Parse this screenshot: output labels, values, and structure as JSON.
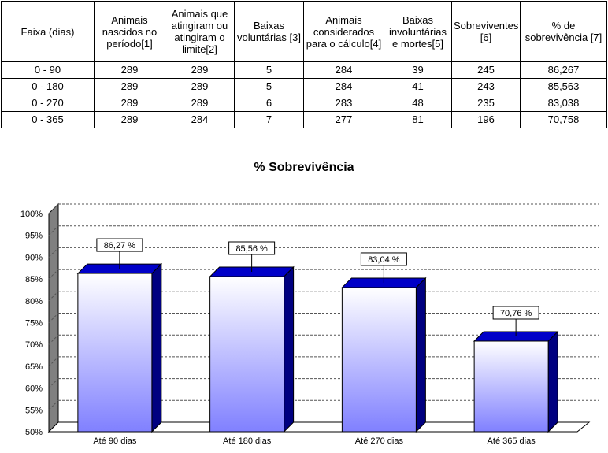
{
  "table": {
    "headers": [
      "Faixa (dias)",
      "Animais nascidos no período[1]",
      "Animais que atingiram ou atingiram o limite[2]",
      "Baixas voluntárias [3]",
      "Animais considerados para o cálculo[4]",
      "Baixas involuntárias e mortes[5]",
      "Sobreviventes [6]",
      "% de sobrevivência [7]"
    ],
    "rows": [
      [
        "0 - 90",
        "289",
        "289",
        "5",
        "284",
        "39",
        "245",
        "86,267"
      ],
      [
        "0 - 180",
        "289",
        "289",
        "5",
        "284",
        "41",
        "243",
        "85,563"
      ],
      [
        "0 - 270",
        "289",
        "289",
        "6",
        "283",
        "48",
        "235",
        "83,038"
      ],
      [
        "0 - 365",
        "289",
        "284",
        "7",
        "277",
        "81",
        "196",
        "70,758"
      ]
    ]
  },
  "chart_data": {
    "type": "bar",
    "title": "% Sobrevivência",
    "categories": [
      "Até 90 dias",
      "Até 180 dias",
      "Até 270 dias",
      "Até 365 dias"
    ],
    "values": [
      86.27,
      85.56,
      83.04,
      70.76
    ],
    "data_labels": [
      "86,27 %",
      "85,56 %",
      "83,04 %",
      "70,76 %"
    ],
    "ylim": [
      50,
      100
    ],
    "yticks": [
      "50%",
      "55%",
      "60%",
      "65%",
      "70%",
      "75%",
      "80%",
      "85%",
      "90%",
      "95%",
      "100%"
    ],
    "grid": true,
    "style": "3d-column",
    "colors": {
      "bar_gradient_top": "#ffffff",
      "bar_gradient_bottom": "#8080ff",
      "bar_side": "#000080",
      "bar_top": "#0000c8",
      "wall": "#808080",
      "gridline": "#555555"
    }
  }
}
